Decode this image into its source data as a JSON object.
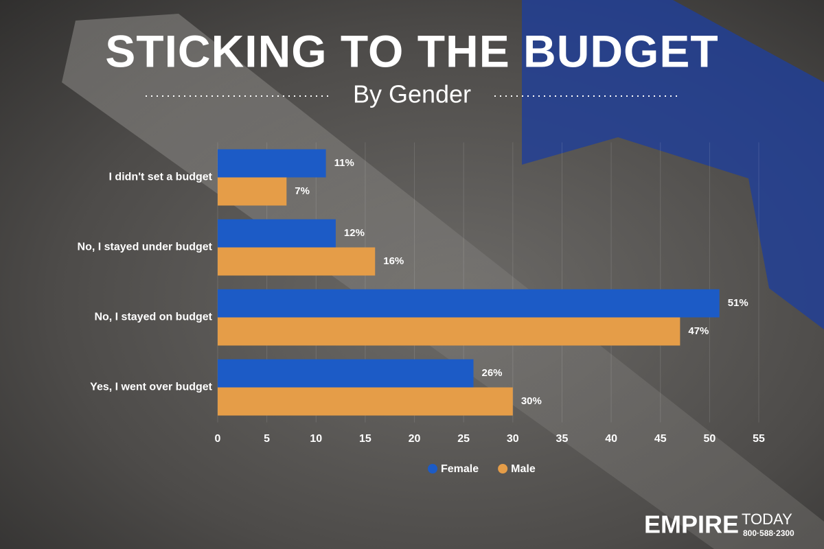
{
  "chart_data": {
    "type": "hbar",
    "title": "STICKING TO THE BUDGET",
    "subtitle": "By Gender",
    "categories": [
      "I didn't set a budget",
      "No, I stayed under budget",
      "No, I stayed on budget",
      "Yes, I went over budget"
    ],
    "series": [
      {
        "name": "Female",
        "color": "#1c5bc6",
        "values": [
          11,
          12,
          51,
          26
        ],
        "value_labels": [
          "11%",
          "12%",
          "51%",
          "26%"
        ]
      },
      {
        "name": "Male",
        "color": "#e59d48",
        "values": [
          7,
          16,
          47,
          30
        ],
        "value_labels": [
          "7%",
          "16%",
          "47%",
          "30%"
        ]
      }
    ],
    "xlim": [
      0,
      55
    ],
    "xticks": [
      0,
      5,
      10,
      15,
      20,
      25,
      30,
      35,
      40,
      45,
      50,
      55
    ],
    "grid": true,
    "legend": "bottom"
  },
  "logo": {
    "brand": "EMPIRE",
    "brand_suffix": "TODAY",
    "phone": "800·588·2300"
  }
}
